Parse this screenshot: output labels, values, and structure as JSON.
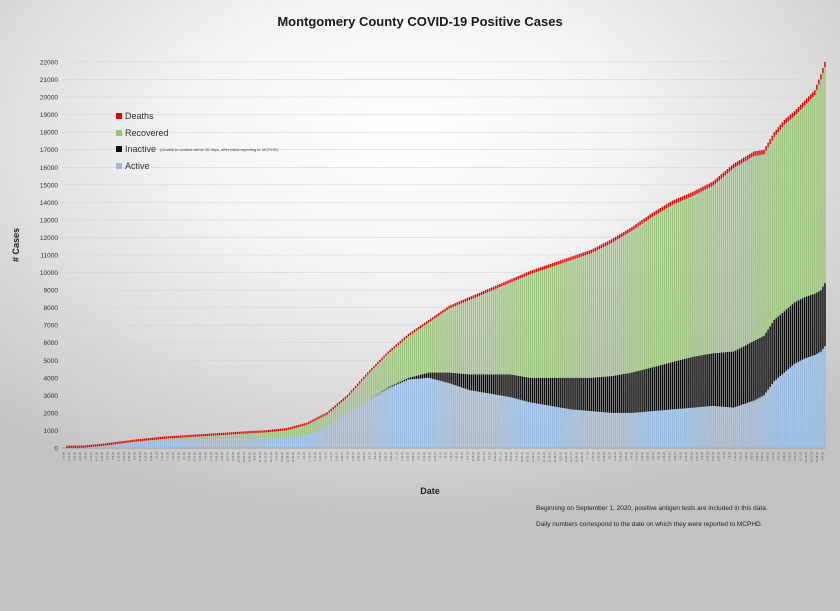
{
  "chart_data": {
    "type": "bar",
    "stacked": true,
    "title": "Montgomery County COVID-19 Positive Cases",
    "xlabel": "Date",
    "ylabel": "# Cases",
    "ylim": [
      0,
      22000
    ],
    "yticks": [
      0,
      1000,
      2000,
      3000,
      4000,
      5000,
      6000,
      7000,
      8000,
      9000,
      10000,
      11000,
      12000,
      13000,
      14000,
      15000,
      16000,
      17000,
      18000,
      19000,
      20000,
      21000,
      22000
    ],
    "grid": true,
    "legend_position": "upper-left",
    "series": [
      {
        "name": "Deaths",
        "color": "#e00000",
        "legend_note": ""
      },
      {
        "name": "Recovered",
        "color": "#9bc27e",
        "legend_note": ""
      },
      {
        "name": "Inactive",
        "color": "#0a0a0a",
        "legend_note": "(Unable to contact within 30 days, after initial reporting to MCPHD)"
      },
      {
        "name": "Active",
        "color": "#9bbbe0",
        "legend_note": ""
      }
    ],
    "reading_note": "Daily bars (~292). Values are piecewise-linear checkpoints over bar index.",
    "bar_count": 292,
    "total_checkpoints": [
      [
        0,
        0
      ],
      [
        10,
        20
      ],
      [
        20,
        130
      ],
      [
        35,
        370
      ],
      [
        50,
        560
      ],
      [
        70,
        720
      ],
      [
        90,
        880
      ],
      [
        100,
        950
      ],
      [
        110,
        1080
      ],
      [
        120,
        1400
      ],
      [
        130,
        2000
      ],
      [
        140,
        3000
      ],
      [
        150,
        4300
      ],
      [
        160,
        5500
      ],
      [
        170,
        6500
      ],
      [
        180,
        7300
      ],
      [
        190,
        8100
      ],
      [
        200,
        8600
      ],
      [
        210,
        9100
      ],
      [
        220,
        9600
      ],
      [
        230,
        10100
      ],
      [
        240,
        10500
      ],
      [
        250,
        10900
      ],
      [
        260,
        11300
      ],
      [
        270,
        11900
      ],
      [
        280,
        12600
      ],
      [
        290,
        13400
      ],
      [
        300,
        14100
      ],
      [
        310,
        14600
      ],
      [
        320,
        15200
      ],
      [
        330,
        16200
      ],
      [
        340,
        16900
      ],
      [
        345,
        17000
      ],
      [
        350,
        18000
      ],
      [
        355,
        18700
      ],
      [
        360,
        19200
      ],
      [
        365,
        19800
      ],
      [
        370,
        20400
      ],
      [
        373,
        21300
      ],
      [
        375,
        22000
      ]
    ],
    "active_checkpoints": [
      [
        0,
        0
      ],
      [
        10,
        20
      ],
      [
        20,
        120
      ],
      [
        35,
        330
      ],
      [
        50,
        440
      ],
      [
        70,
        480
      ],
      [
        90,
        530
      ],
      [
        100,
        560
      ],
      [
        110,
        620
      ],
      [
        120,
        760
      ],
      [
        130,
        1200
      ],
      [
        140,
        2000
      ],
      [
        150,
        2700
      ],
      [
        160,
        3400
      ],
      [
        170,
        3900
      ],
      [
        180,
        4000
      ],
      [
        190,
        3700
      ],
      [
        200,
        3300
      ],
      [
        210,
        3100
      ],
      [
        220,
        2900
      ],
      [
        230,
        2600
      ],
      [
        240,
        2400
      ],
      [
        250,
        2200
      ],
      [
        260,
        2100
      ],
      [
        270,
        2000
      ],
      [
        280,
        2000
      ],
      [
        290,
        2100
      ],
      [
        300,
        2200
      ],
      [
        310,
        2300
      ],
      [
        320,
        2400
      ],
      [
        330,
        2300
      ],
      [
        340,
        2700
      ],
      [
        345,
        3000
      ],
      [
        350,
        3800
      ],
      [
        355,
        4300
      ],
      [
        360,
        4800
      ],
      [
        365,
        5100
      ],
      [
        370,
        5300
      ],
      [
        373,
        5500
      ],
      [
        375,
        5800
      ]
    ],
    "inactive_checkpoints": [
      [
        0,
        0
      ],
      [
        150,
        0
      ],
      [
        160,
        50
      ],
      [
        170,
        100
      ],
      [
        175,
        200
      ],
      [
        180,
        300
      ],
      [
        190,
        600
      ],
      [
        200,
        900
      ],
      [
        210,
        1100
      ],
      [
        220,
        1300
      ],
      [
        230,
        1400
      ],
      [
        240,
        1600
      ],
      [
        250,
        1800
      ],
      [
        260,
        1900
      ],
      [
        270,
        2100
      ],
      [
        280,
        2300
      ],
      [
        290,
        2500
      ],
      [
        300,
        2700
      ],
      [
        310,
        2900
      ],
      [
        320,
        3000
      ],
      [
        330,
        3200
      ],
      [
        340,
        3400
      ],
      [
        345,
        3400
      ],
      [
        350,
        3500
      ],
      [
        355,
        3500
      ],
      [
        360,
        3500
      ],
      [
        365,
        3500
      ],
      [
        370,
        3500
      ],
      [
        373,
        3500
      ],
      [
        375,
        3600
      ]
    ],
    "deaths_checkpoints": [
      [
        0,
        0
      ],
      [
        20,
        5
      ],
      [
        50,
        30
      ],
      [
        100,
        60
      ],
      [
        150,
        110
      ],
      [
        200,
        170
      ],
      [
        250,
        200
      ],
      [
        300,
        230
      ],
      [
        340,
        260
      ],
      [
        375,
        290
      ]
    ],
    "x_tick_labels": [
      "3-6-20",
      "3-13-20",
      "3-20-20",
      "3-27-20",
      "4-3-20",
      "4-10-20",
      "4-17-20",
      "4-24-20",
      "5-1-20",
      "5-8-20",
      "5-15-20",
      "5-22-20",
      "5-29-20",
      "6-5-20",
      "6-12-20",
      "6-19-20",
      "6-26-20",
      "7-3-20",
      "7-10-20",
      "7-17-20",
      "7-24-20",
      "7-31-20",
      "8-7-20",
      "8-14-20",
      "8-21-20",
      "8-28-20",
      "9-4-20",
      "9-11-20",
      "9-18-20",
      "9-25-20",
      "10-2-20",
      "10-9-20",
      "10-16-20",
      "10-23-20",
      "10-30-20",
      "11-6-20",
      "11-13-20",
      "11-20-20",
      "11-27-20",
      "12-4-20",
      "12-11-20",
      "12-18-20",
      "12-25-20",
      "1-1-21",
      "1-8-21",
      "1-15-21",
      "1-22-21",
      "1-29-21",
      "2-5-21",
      "2-12-21",
      "2-19-21",
      "2-26-21",
      "3-5-21",
      "3-12-21",
      "3-19-21",
      "3-26-21",
      "4-2-21",
      "4-9-21",
      "4-16-21",
      "4-23-21",
      "4-30-21",
      "5-7-21",
      "5-14-21",
      "5-21-21",
      "5-28-21",
      "6-4-21",
      "6-11-21",
      "6-18-21",
      "6-25-21",
      "7-2-21",
      "7-9-21",
      "7-16-21",
      "7-23-21",
      "7-30-21",
      "8-6-21",
      "8-13-21",
      "8-20-21",
      "8-27-21",
      "9-3-21",
      "9-10-21",
      "9-17-21",
      "9-24-21",
      "10-1-21",
      "10-8-21",
      "10-15-21",
      "10-22-21",
      "10-29-21",
      "11-5-21",
      "11-12-21",
      "11-19-21",
      "11-26-21",
      "12-3-21",
      "12-10-21",
      "12-17-21",
      "12-24-21",
      "12-31-21",
      "1-7-22",
      "1-14-22",
      "1-21-22",
      "1-28-22",
      "2-4-22",
      "2-11-22",
      "2-18-22",
      "2-25-22",
      "3-4-22",
      "3-11-22",
      "3-18-22",
      "3-25-22",
      "4-1-22",
      "4-8-22",
      "4-15-22",
      "4-22-22",
      "4-29-22",
      "5-6-22",
      "5-13-22",
      "5-20-22",
      "5-27-22",
      "6-3-22",
      "6-10-22",
      "6-17-22",
      "6-24-22",
      "7-1-22",
      "7-8-22",
      "7-15-22",
      "7-22-22",
      "7-29-22",
      "8-5-22",
      "8-12-22",
      "8-19-22",
      "8-26-22",
      "9-2-22",
      "9-9-22",
      "9-16-22",
      "9-23-22",
      "9-30-22",
      "10-7-22",
      "10-14-22",
      "10-21-22",
      "10-28-22",
      "11-4-22"
    ]
  },
  "notes": {
    "antigen": "Beginning on September 1, 2020, positive antigen tests are included in this data.",
    "daily": "Daily numbers correspond to the date on which they were reported to MCPHD."
  }
}
